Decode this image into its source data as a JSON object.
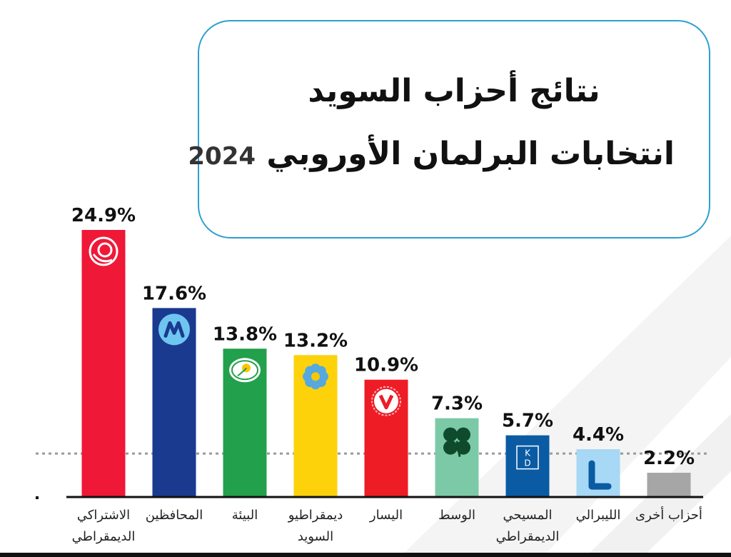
{
  "title": {
    "line1": "نتائج أحزاب السويد",
    "line2": "انتخابات البرلمان الأوروبي",
    "year": "2024"
  },
  "chart_data": {
    "type": "bar",
    "title": "نتائج أحزاب السويد انتخابات البرلمان الأوروبي 2024",
    "xlabel": "",
    "ylabel": "",
    "ylim": [
      0,
      26
    ],
    "grid": false,
    "categories": [
      [
        "الاشتراكي",
        "الديمقراطي"
      ],
      [
        "المحافظين"
      ],
      [
        "البيئة"
      ],
      [
        "ديمقراطيو",
        "السويد"
      ],
      [
        "اليسار"
      ],
      [
        "الوسط"
      ],
      [
        "المسيحي",
        "الديمقراطي"
      ],
      [
        "الليبرالي"
      ],
      [
        "أحزاب أخرى"
      ]
    ],
    "values": [
      24.9,
      17.6,
      13.8,
      13.2,
      10.9,
      7.3,
      5.7,
      4.4,
      2.2
    ],
    "value_labels": [
      "24.9%",
      "17.6%",
      "13.8%",
      "13.2%",
      "10.9%",
      "7.3%",
      "5.7%",
      "4.4%",
      "2.2%"
    ],
    "colors": [
      "#ef1837",
      "#1a3a8f",
      "#22a04b",
      "#fdd20a",
      "#ee1c25",
      "#7cc9a8",
      "#0a5ba3",
      "#a7d8f5",
      "#a6a6a6"
    ],
    "logos": [
      "rose-logo",
      "moderates-m-logo",
      "green-sun-logo",
      "blue-flower-logo",
      "v-star-logo",
      "clover-logo",
      "kd-logo",
      "l-logo",
      "none"
    ],
    "reference_line": 4
  }
}
